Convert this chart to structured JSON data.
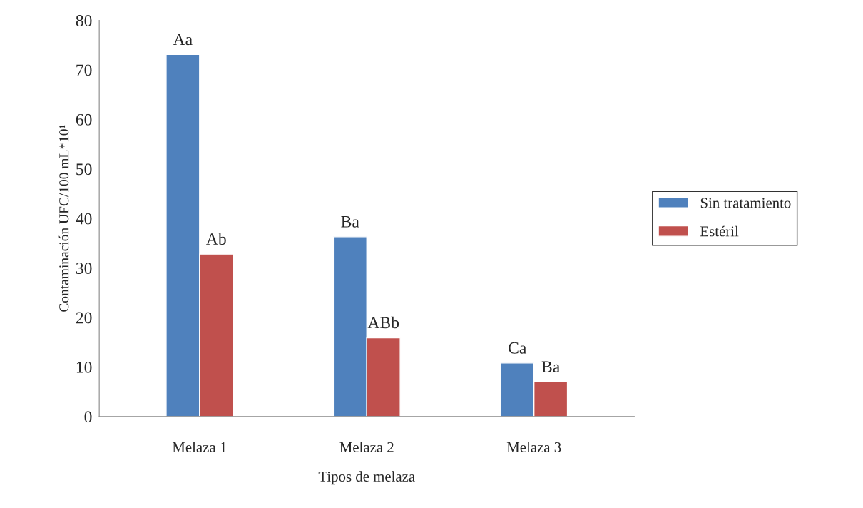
{
  "chart_data": {
    "type": "bar",
    "xlabel": "Tipos de melaza",
    "ylabel": "Contaminación UFC/100 mL*10¹",
    "categories": [
      "Melaza 1",
      "Melaza 2",
      "Melaza 3"
    ],
    "series": [
      {
        "name": "Sin tratamiento",
        "color": "#4f81bd",
        "values": [
          73.1,
          36.3,
          10.8
        ]
      },
      {
        "name": "Estéril",
        "color": "#c0504d",
        "values": [
          32.8,
          15.9,
          7.0
        ]
      }
    ],
    "ylim": [
      0,
      80
    ],
    "yticks": [
      0,
      10,
      20,
      30,
      40,
      50,
      60,
      70,
      80
    ],
    "grid": false,
    "legend": "right",
    "annotations": [
      {
        "text": "Aa",
        "x": "Melaza 1",
        "y": 73.1
      },
      {
        "text": "Ab",
        "x": "Melaza 1",
        "y": 32.8
      },
      {
        "text": "Ba",
        "x": "Melaza 2",
        "y": 36.3
      },
      {
        "text": "ABb",
        "x": "Melaza 2",
        "y": 15.9
      },
      {
        "text": "Ca",
        "x": "Melaza 3",
        "y": 10.8
      },
      {
        "text": "Ba",
        "x": "Melaza 3",
        "y": 7.0
      }
    ]
  }
}
